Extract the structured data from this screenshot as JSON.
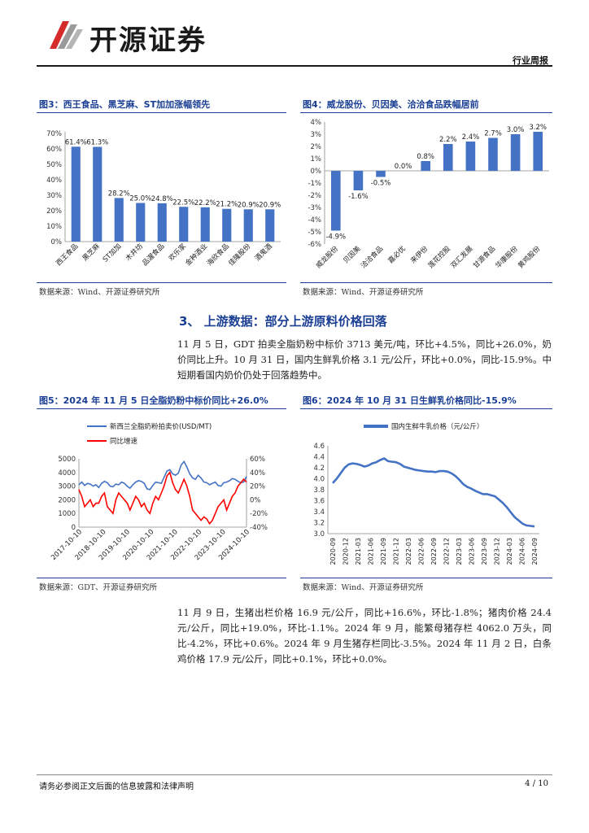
{
  "header": {
    "brand": "开源证券",
    "doc_type": "行业周报"
  },
  "fig3": {
    "title": "图3：西王食品、黑芝麻、ST加加涨幅领先",
    "source": "数据来源：Wind、开源证券研究所"
  },
  "fig4": {
    "title": "图4：威龙股份、贝因美、洽洽食品跌幅居前",
    "source": "数据来源：Wind、开源证券研究所"
  },
  "section3": {
    "title": "3、 上游数据：部分上游原料价格回落",
    "para": "11 月 5 日，GDT 拍卖全脂奶粉中标价 3713 美元/吨，环比+4.5%，同比+26.0%，奶价同比上升。10 月 31 日，国内生鲜乳价格 3.1 元/公斤，环比+0.0%，同比-15.9%。中短期看国内奶价仍处于回落趋势中。"
  },
  "fig5": {
    "title": "图5：2024 年 11 月 5 日全脂奶粉中标价同比+26.0%",
    "source": "数据来源：GDT、开源证券研究所"
  },
  "fig6": {
    "title": "图6：2024 年 10 月 31 日生鲜乳价格同比-15.9%",
    "source": "数据来源：Wind、开源证券研究所"
  },
  "para2": "11 月 9 日，生猪出栏价格 16.9 元/公斤，同比+16.6%，环比-1.8%；猪肉价格 24.4 元/公斤，同比+19.0%，环比-1.1%。2024 年 9 月，能繁母猪存栏 4062.0 万头，同比-4.2%，环比+0.6%。2024 年 9 月生猪存栏同比-3.5%。2024 年 11 月 2 日，白条鸡价格 17.9 元/公斤，同比+0.1%，环比+0.0%。",
  "footer": {
    "left": "请务必参阅正文后面的信息披露和法律声明",
    "right": "4 / 10"
  },
  "colors": {
    "bar": "#4472c4",
    "title": "#1b3f94",
    "red": "#ff0000"
  },
  "chart_data": [
    {
      "type": "bar",
      "categories": [
        "西王食品",
        "黑芝麻",
        "ST加加",
        "木井坊",
        "品渥食品",
        "欢乐家",
        "金种酒业",
        "海欣食品",
        "佳隆股份",
        "酒鬼酒"
      ],
      "values": [
        61.4,
        61.3,
        28.2,
        25.0,
        24.8,
        22.5,
        22.2,
        21.2,
        20.9,
        20.9
      ],
      "value_labels": [
        "61.4%",
        "61.3%",
        "28.2%",
        "25.0%",
        "24.8%",
        "22.5%",
        "22.2%",
        "21.2%",
        "20.9%",
        "20.9%"
      ],
      "ylim": [
        0,
        70
      ],
      "yticks": [
        "0%",
        "10%",
        "20%",
        "30%",
        "40%",
        "50%",
        "60%",
        "70%"
      ]
    },
    {
      "type": "bar",
      "categories": [
        "威龙股份",
        "贝因美",
        "洽洽食品",
        "嘉必优",
        "来伊份",
        "莲花控股",
        "双汇发展",
        "甘源食品",
        "华康股份",
        "黄鸡股份"
      ],
      "values": [
        -4.9,
        -1.6,
        -0.5,
        0.0,
        0.8,
        2.2,
        2.4,
        2.7,
        3.0,
        3.2
      ],
      "value_labels": [
        "-4.9%",
        "-1.6%",
        "-0.5%",
        "0.0%",
        "0.8%",
        "2.2%",
        "2.4%",
        "2.7%",
        "3.0%",
        "3.2%"
      ],
      "ylim": [
        -6,
        4
      ],
      "yticks": [
        "-6%",
        "-5%",
        "-4%",
        "-3%",
        "-2%",
        "-1%",
        "0%",
        "1%",
        "2%",
        "3%",
        "4%"
      ]
    },
    {
      "type": "line",
      "series": [
        {
          "name": "新西兰全脂奶粉拍卖价(USD/MT)",
          "axis": "left",
          "values": [
            3100,
            3300,
            3050,
            3200,
            3150,
            3000,
            3100,
            2900,
            3200,
            3350,
            3250,
            3000,
            2950,
            3150,
            3100,
            3300,
            3200,
            3000,
            2850,
            3100,
            3300,
            3400,
            3350,
            3200,
            2800,
            2750,
            3050,
            3300,
            3250,
            3200,
            3650,
            4100,
            4200,
            3900,
            3800,
            3950,
            4550,
            4800,
            4400,
            3900,
            3600,
            3500,
            3800,
            3600,
            3300,
            3250,
            3100,
            3200,
            3300,
            3050,
            3000,
            3250,
            3300,
            3400,
            3550,
            3500,
            3350,
            3250,
            3300,
            3700
          ]
        },
        {
          "name": "同比增速",
          "axis": "right",
          "values": [
            15,
            5,
            -10,
            -5,
            0,
            -10,
            -5,
            -5,
            5,
            10,
            -10,
            -15,
            -20,
            0,
            10,
            5,
            0,
            -5,
            -15,
            -5,
            5,
            0,
            -10,
            -5,
            -15,
            -20,
            -5,
            5,
            0,
            10,
            20,
            35,
            40,
            25,
            15,
            10,
            20,
            30,
            20,
            5,
            -15,
            -20,
            -25,
            -30,
            -25,
            -28,
            -35,
            -30,
            -20,
            -10,
            -5,
            0,
            -15,
            -5,
            5,
            10,
            20,
            25,
            30,
            26
          ]
        }
      ],
      "x_ticks": [
        "2017-10-10",
        "2018-10-10",
        "2019-10-10",
        "2020-10-10",
        "2021-10-10",
        "2022-10-10",
        "2023-10-10",
        "2024-10-10"
      ],
      "y_left_ticks": [
        "0",
        "1000",
        "2000",
        "3000",
        "4000",
        "5000"
      ],
      "y_right_ticks": [
        "-40%",
        "-20%",
        "0%",
        "20%",
        "40%",
        "60%"
      ],
      "ylim_left": [
        0,
        5000
      ],
      "ylim_right": [
        -40,
        60
      ]
    },
    {
      "type": "line",
      "series": [
        {
          "name": "国内生鲜牛乳价格（元/公斤）",
          "values": [
            3.92,
            4.0,
            4.1,
            4.2,
            4.26,
            4.28,
            4.27,
            4.25,
            4.22,
            4.24,
            4.28,
            4.3,
            4.34,
            4.37,
            4.32,
            4.31,
            4.3,
            4.27,
            4.22,
            4.2,
            4.18,
            4.16,
            4.15,
            4.14,
            4.13,
            4.13,
            4.12,
            4.14,
            4.14,
            4.13,
            4.1,
            4.05,
            3.98,
            3.9,
            3.85,
            3.82,
            3.78,
            3.75,
            3.72,
            3.72,
            3.7,
            3.68,
            3.62,
            3.56,
            3.48,
            3.39,
            3.3,
            3.24,
            3.18,
            3.15,
            3.14,
            3.13
          ]
        }
      ],
      "x_ticks": [
        "2020-09",
        "2020-12",
        "2021-03",
        "2021-06",
        "2021-09",
        "2021-12",
        "2022-03",
        "2022-06",
        "2022-09",
        "2022-12",
        "2023-03",
        "2023-06",
        "2023-09",
        "2023-12",
        "2024-03",
        "2024-06",
        "2024-09"
      ],
      "yticks": [
        "3.0",
        "3.2",
        "3.4",
        "3.6",
        "3.8",
        "4.0",
        "4.2",
        "4.4",
        "4.6"
      ],
      "ylim": [
        3.0,
        4.6
      ]
    }
  ]
}
